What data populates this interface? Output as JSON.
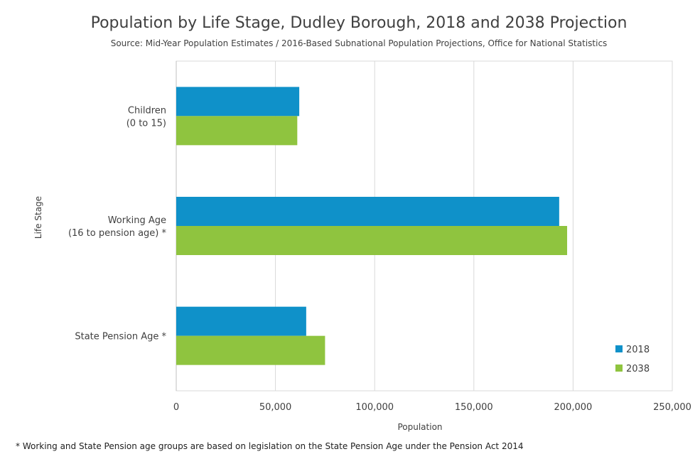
{
  "chart_data": {
    "type": "bar",
    "orientation": "horizontal",
    "title": "Population by Life Stage, Dudley Borough, 2018 and 2038 Projection",
    "subtitle": "Source: Mid-Year Population Estimates / 2016-Based Subnational Population Projections, Office for National Statistics",
    "xlabel": "Population",
    "ylabel": "Life Stage",
    "xlim": [
      0,
      250000
    ],
    "x_ticks": [
      0,
      50000,
      100000,
      150000,
      200000,
      250000
    ],
    "x_tick_labels": [
      "0",
      "50,000",
      "100,000",
      "150,000",
      "200,000",
      "250,000"
    ],
    "categories": [
      [
        "Children",
        "(0 to 15)"
      ],
      [
        "Working Age",
        "(16 to pension age) *"
      ],
      [
        "State Pension Age *"
      ]
    ],
    "series": [
      {
        "name": "2018",
        "color": "#0f91c9",
        "values": [
          62000,
          193000,
          65500
        ]
      },
      {
        "name": "2038",
        "color": "#8fc43f",
        "values": [
          61000,
          197000,
          75000
        ]
      }
    ],
    "grid": true,
    "legend_position": "bottom-right"
  },
  "footnote": "* Working and State Pension age groups are based on legislation on the State Pension Age under the Pension Act 2014"
}
